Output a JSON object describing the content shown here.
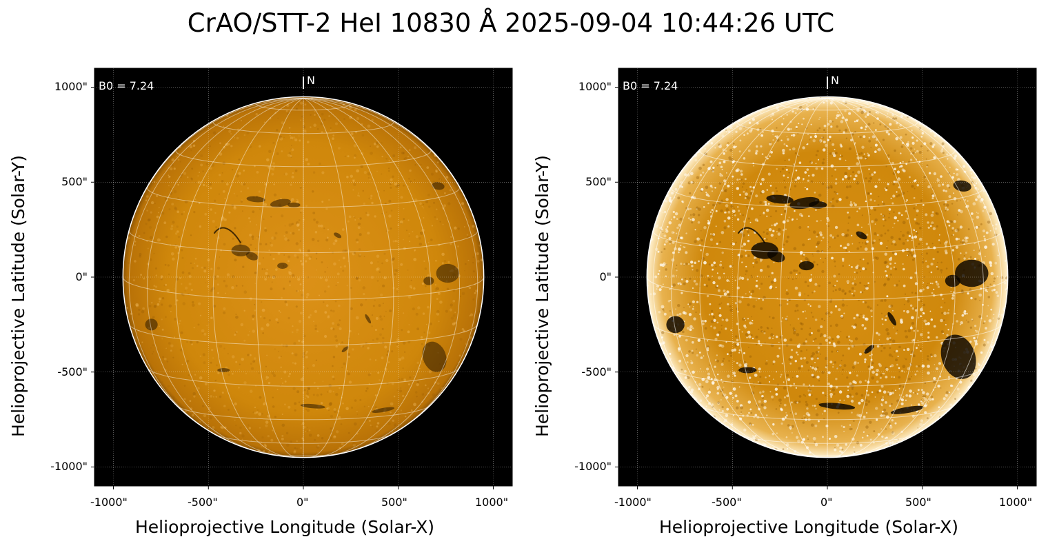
{
  "figure": {
    "title": "CrAO/STT-2 HeI 10830 Å 2025-09-04 10:44:26 UTC",
    "panels": [
      {
        "id": "left",
        "b0_label": "B0 = 7.24",
        "north_label": "N",
        "xlabel": "Helioprojective Longitude (Solar-X)",
        "ylabel": "Helioprojective Latitude (Solar-Y)",
        "xticks": [
          "-1000\"",
          "-500\"",
          "0\"",
          "500\"",
          "1000\""
        ],
        "yticks": [
          "1000\"",
          "500\"",
          "0\"",
          "-500\"",
          "-1000\""
        ],
        "xlim": [
          -1100,
          1100
        ],
        "ylim": [
          -1100,
          1100
        ],
        "tick_values": [
          -1000,
          -500,
          0,
          500,
          1000
        ],
        "solar_radius_arcsec": 950,
        "b0_deg": 7.24,
        "disk_style": "normal",
        "colormap": "sdo-orange",
        "colors": {
          "disk_base": "#d0880a",
          "disk_light": "#f0b24a",
          "disk_dark": "#1a0f00",
          "background": "#000000",
          "grid": "#ffffff"
        }
      },
      {
        "id": "right",
        "b0_label": "B0 = 7.24",
        "north_label": "N",
        "xlabel": "Helioprojective Longitude (Solar-X)",
        "ylabel": "Helioprojective Latitude (Solar-Y)",
        "xticks": [
          "-1000\"",
          "-500\"",
          "0\"",
          "500\"",
          "1000\""
        ],
        "yticks": [
          "1000\"",
          "500\"",
          "0\"",
          "-500\"",
          "-1000\""
        ],
        "xlim": [
          -1100,
          1100
        ],
        "ylim": [
          -1100,
          1100
        ],
        "tick_values": [
          -1000,
          -500,
          0,
          500,
          1000
        ],
        "solar_radius_arcsec": 950,
        "b0_deg": 7.24,
        "disk_style": "enhanced",
        "colormap": "sdo-orange",
        "colors": {
          "disk_base": "#c98409",
          "disk_light": "#fff6e0",
          "disk_dark": "#000000",
          "background": "#000000",
          "grid": "#ffffff"
        }
      }
    ]
  }
}
